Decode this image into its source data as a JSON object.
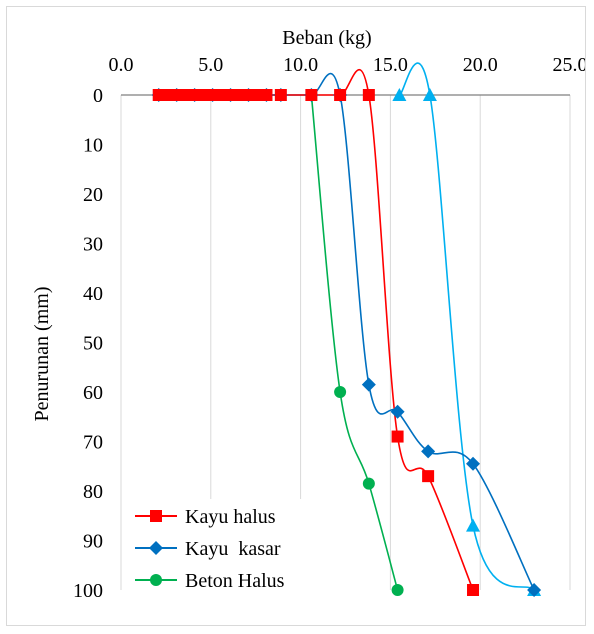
{
  "chart_data": {
    "type": "line",
    "title": "",
    "xlabel": "Beban (kg)",
    "ylabel": "Penurunan (mm)",
    "xlim": [
      0,
      25
    ],
    "ylim": [
      0,
      100
    ],
    "y_reversed": true,
    "x_axis_position": "top",
    "x_ticks": [
      0,
      5,
      10,
      15,
      20,
      25
    ],
    "x_tick_labels": [
      "0.0",
      "5.0",
      "10.0",
      "15.0",
      "20.0",
      "25.0"
    ],
    "y_ticks": [
      0,
      10,
      20,
      30,
      40,
      50,
      60,
      70,
      80,
      90,
      100
    ],
    "y_tick_labels": [
      "0",
      "10",
      "20",
      "30",
      "40",
      "50",
      "60",
      "70",
      "80",
      "90",
      "100"
    ],
    "grid": "vertical",
    "legend_position": "bottom-left",
    "series": [
      {
        "name": "Kayu halus",
        "color": "#ff0000",
        "marker": "square",
        "x": [
          2.1,
          2.6,
          3.1,
          3.6,
          4.1,
          4.6,
          5.1,
          5.6,
          6.1,
          6.6,
          7.1,
          7.6,
          8.1,
          8.9,
          10.6,
          12.2,
          13.8,
          15.4,
          17.1,
          19.6
        ],
        "y": [
          0,
          0,
          0,
          0,
          0,
          0,
          0,
          0,
          0,
          0,
          0,
          0,
          0,
          0,
          0,
          0,
          0,
          69,
          77,
          100
        ]
      },
      {
        "name": "Kayu  kasar",
        "color": "#0070c0",
        "marker": "diamond",
        "x": [
          2.1,
          3.1,
          4.1,
          5.1,
          6.1,
          7.1,
          8.1,
          8.9,
          10.6,
          12.2,
          13.8,
          15.4,
          17.1,
          19.6,
          23.0
        ],
        "y": [
          0,
          0,
          0,
          0,
          0,
          0,
          0,
          0,
          0,
          0,
          58.5,
          64,
          72,
          74.5,
          100
        ]
      },
      {
        "name": "",
        "color": "#00b0f0",
        "marker": "triangle",
        "x": [
          15.5,
          17.2,
          19.6,
          23.0
        ],
        "y": [
          0,
          0,
          87,
          100
        ]
      },
      {
        "name": "Beton Halus",
        "color": "#00b050",
        "marker": "circle",
        "x": [
          10.6,
          12.2,
          13.8,
          15.4
        ],
        "y": [
          0,
          60,
          78.5,
          100
        ]
      }
    ]
  }
}
